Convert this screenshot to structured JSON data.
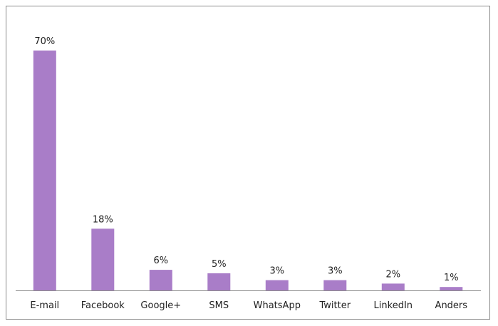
{
  "chart_data": {
    "type": "bar",
    "categories": [
      "E-mail",
      "Facebook",
      "Google+",
      "SMS",
      "WhatsApp",
      "Twitter",
      "LinkedIn",
      "Anders"
    ],
    "values": [
      70,
      18,
      6,
      5,
      3,
      3,
      2,
      1
    ],
    "value_labels": [
      "70%",
      "18%",
      "6%",
      "5%",
      "3%",
      "3%",
      "2%",
      "1%"
    ],
    "unit": "%",
    "title": "",
    "xlabel": "",
    "ylabel": "",
    "ylim": [
      0,
      70
    ],
    "grid": false,
    "legend": "none",
    "bar_color": "#a97dc8"
  }
}
